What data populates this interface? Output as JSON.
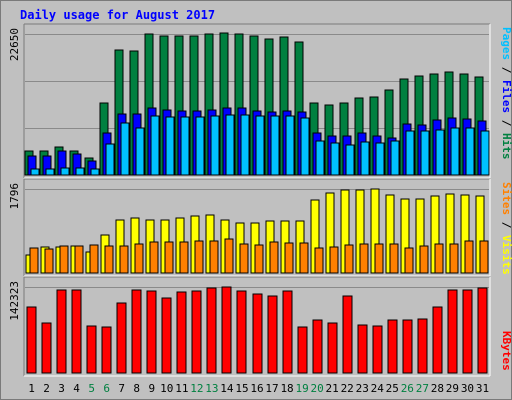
{
  "chart_data": {
    "type": "bar",
    "title": "Daily usage for August 2017",
    "categories": [
      "1",
      "2",
      "3",
      "4",
      "5",
      "6",
      "7",
      "8",
      "9",
      "10",
      "11",
      "12",
      "13",
      "14",
      "15",
      "16",
      "17",
      "18",
      "19",
      "20",
      "21",
      "22",
      "23",
      "24",
      "25",
      "26",
      "27",
      "28",
      "29",
      "30",
      "31"
    ],
    "weekend_days": [
      "5",
      "6",
      "12",
      "13",
      "19",
      "20",
      "26",
      "27"
    ],
    "panels": [
      {
        "id": "hits",
        "max_label": "22650",
        "ymax": 22650,
        "legend": [
          "Pages",
          "Files",
          "Hits"
        ],
        "series": [
          {
            "name": "Hits",
            "color": "#008040",
            "values": [
              3800,
              3800,
              4500,
              3900,
              2700,
              11600,
              20100,
              19900,
              22600,
              22300,
              22400,
              22300,
              22600,
              22800,
              22700,
              22300,
              21900,
              22200,
              21300,
              11600,
              11300,
              11600,
              12400,
              12500,
              13600,
              15400,
              15900,
              16300,
              16500,
              16300,
              15800
            ]
          },
          {
            "name": "Files",
            "color": "#0000ff",
            "values": [
              3100,
              3100,
              3800,
              3400,
              2200,
              6700,
              9800,
              9800,
              10700,
              10500,
              10300,
              10300,
              10500,
              10800,
              10700,
              10300,
              10200,
              10300,
              10100,
              6700,
              6200,
              6200,
              6800,
              6300,
              6000,
              8200,
              8000,
              8800,
              9200,
              9000,
              8700
            ]
          },
          {
            "name": "Pages",
            "color": "#00c0ff",
            "values": [
              1000,
              1000,
              1200,
              1200,
              1000,
              5000,
              8300,
              7600,
              9400,
              9300,
              9300,
              9300,
              9400,
              9700,
              9600,
              9400,
              9400,
              9400,
              9200,
              5400,
              5200,
              4800,
              5300,
              5100,
              5500,
              7000,
              7100,
              7200,
              7600,
              7500,
              7000
            ]
          }
        ]
      },
      {
        "id": "visits",
        "max_label": "1796",
        "ymax": 1796,
        "legend": [
          "Sites",
          "Visits"
        ],
        "series": [
          {
            "name": "Visits",
            "color": "#ffff00",
            "values": [
              390,
              555,
              560,
              570,
              440,
              810,
              1130,
              1170,
              1130,
              1130,
              1170,
              1220,
              1240,
              1140,
              1060,
              1060,
              1110,
              1110,
              1110,
              1560,
              1710,
              1770,
              1770,
              1800,
              1660,
              1590,
              1580,
              1650,
              1680,
              1670,
              1640
            ]
          },
          {
            "name": "Sites",
            "color": "#ff8000",
            "values": [
              540,
              520,
              570,
              580,
              590,
              570,
              570,
              620,
              660,
              660,
              660,
              690,
              690,
              720,
              620,
              600,
              670,
              650,
              640,
              530,
              550,
              600,
              620,
              610,
              620,
              540,
              570,
              610,
              620,
              690,
              690
            ]
          }
        ]
      },
      {
        "id": "kbytes",
        "max_label": "142323",
        "ymax": 142323,
        "legend": [
          "KBytes"
        ],
        "series": [
          {
            "name": "KBytes",
            "color": "#ff0000",
            "values": [
              110000,
              83000,
              138000,
              138000,
              78000,
              76000,
              116000,
              138000,
              136000,
              124000,
              134000,
              136000,
              140000,
              143000,
              136000,
              131000,
              128000,
              136000,
              76000,
              88000,
              82000,
              128000,
              80000,
              78000,
              87000,
              87000,
              89000,
              110000,
              137000,
              137000,
              140000
            ]
          }
        ]
      }
    ],
    "legend_colors": {
      "Pages": "#00c0ff",
      "Files": "#0000ff",
      "Hits": "#008040",
      "Sites": "#ff8000",
      "Visits": "#ffff00",
      "KBytes": "#ff0000",
      "slash": "#000000"
    },
    "label_colors": {
      "weekday": "#000000",
      "weekend": "#008040",
      "title": "#0000ff",
      "max_label": "#000000"
    }
  }
}
